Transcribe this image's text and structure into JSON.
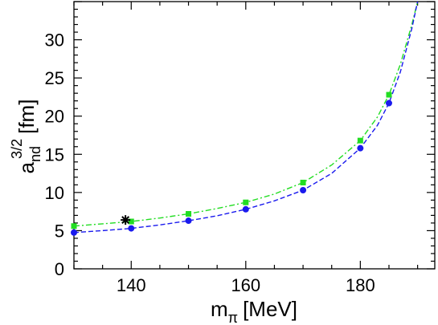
{
  "chart_data": {
    "type": "line",
    "xlabel": {
      "main": "m",
      "sub": "π",
      "unit": "[MeV]"
    },
    "ylabel": {
      "main": "a",
      "sub": "nd",
      "sup": "3/2",
      "unit": "[fm]"
    },
    "xlim": [
      130,
      193
    ],
    "ylim": [
      0,
      35
    ],
    "x_ticks": [
      140,
      160,
      180
    ],
    "y_ticks": [
      0,
      5,
      10,
      15,
      20,
      25,
      30
    ],
    "grid": false,
    "legend": "none",
    "series": [
      {
        "color": "#22dd22",
        "marker": "square",
        "line_style": "dash-dot",
        "points": [
          [
            130,
            5.6
          ],
          [
            140,
            6.2
          ],
          [
            150,
            7.2
          ],
          [
            160,
            8.7
          ],
          [
            170,
            11.3
          ],
          [
            180,
            16.8
          ],
          [
            185,
            22.8
          ]
        ],
        "curve": [
          [
            130,
            5.6
          ],
          [
            135,
            5.9
          ],
          [
            140,
            6.2
          ],
          [
            145,
            6.65
          ],
          [
            150,
            7.2
          ],
          [
            155,
            7.9
          ],
          [
            160,
            8.7
          ],
          [
            165,
            9.8
          ],
          [
            170,
            11.3
          ],
          [
            175,
            13.6
          ],
          [
            180,
            16.8
          ],
          [
            183,
            19.9
          ],
          [
            185,
            22.8
          ],
          [
            187,
            26.8
          ],
          [
            189,
            32.0
          ],
          [
            190,
            35.0
          ]
        ]
      },
      {
        "color": "#1a1aee",
        "marker": "circle",
        "line_style": "dashed",
        "points": [
          [
            130,
            4.75
          ],
          [
            140,
            5.3
          ],
          [
            150,
            6.3
          ],
          [
            160,
            7.8
          ],
          [
            170,
            10.3
          ],
          [
            180,
            15.8
          ],
          [
            185,
            21.7
          ]
        ],
        "curve": [
          [
            130,
            4.75
          ],
          [
            135,
            5.0
          ],
          [
            140,
            5.3
          ],
          [
            145,
            5.75
          ],
          [
            150,
            6.3
          ],
          [
            155,
            6.95
          ],
          [
            160,
            7.8
          ],
          [
            165,
            8.9
          ],
          [
            170,
            10.3
          ],
          [
            175,
            12.5
          ],
          [
            180,
            15.8
          ],
          [
            183,
            18.8
          ],
          [
            185,
            21.7
          ],
          [
            187,
            25.8
          ],
          [
            189,
            31.5
          ],
          [
            190,
            35.0
          ]
        ]
      }
    ],
    "annotations": [
      {
        "marker": "asterisk",
        "color": "#000000",
        "x": 139,
        "y": 6.4
      }
    ]
  }
}
